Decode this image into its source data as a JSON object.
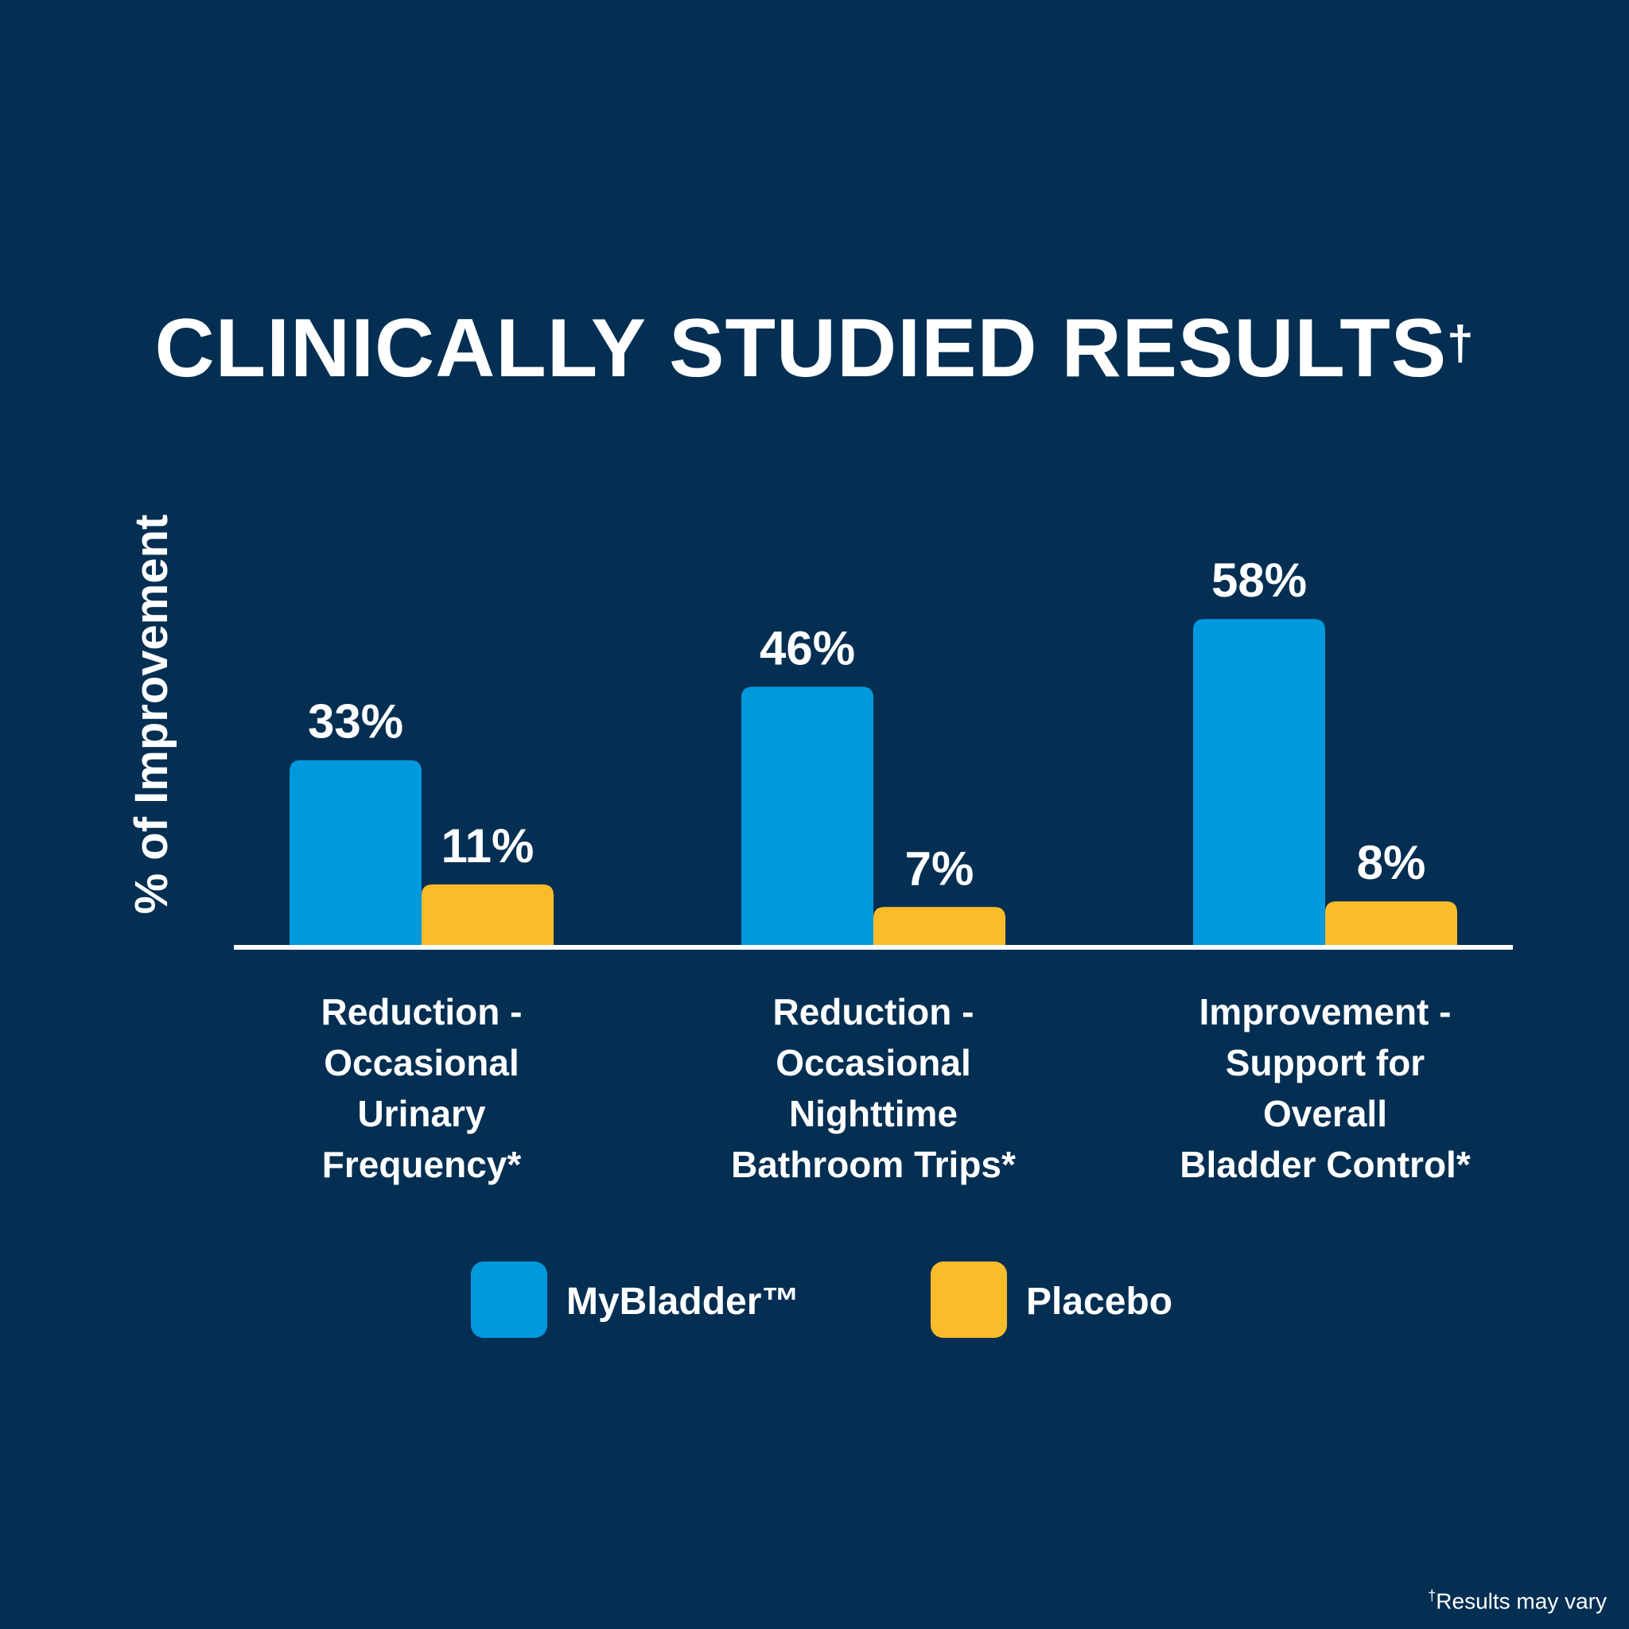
{
  "header": {
    "title": "CLINICALLY STUDIED RESULTS",
    "title_mark": "†"
  },
  "footer": {
    "note_mark": "†",
    "note": "Results may vary"
  },
  "colors": {
    "background": "#042f53",
    "mybladder": "#0099dd",
    "placebo": "#fbbc2a",
    "text": "#ffffff"
  },
  "chart_data": {
    "type": "bar",
    "title": "CLINICALLY STUDIED RESULTS†",
    "xlabel": "",
    "ylabel": "% of Improvement",
    "ylim": [
      0,
      100
    ],
    "grid": false,
    "legend_position": "bottom",
    "categories": [
      [
        "Reduction -",
        "Occasional",
        "Urinary",
        "Frequency*"
      ],
      [
        "Reduction -",
        "Occasional",
        "Nighttime",
        "Bathroom Trips*"
      ],
      [
        "Improvement -",
        "Support for",
        "Overall",
        "Bladder Control*"
      ]
    ],
    "series": [
      {
        "name": "MyBladder™",
        "color": "#0099dd",
        "values": [
          33,
          46,
          58
        ],
        "labels": [
          "33%",
          "46%",
          "58%"
        ]
      },
      {
        "name": "Placebo",
        "color": "#fbbc2a",
        "values": [
          11,
          7,
          8
        ],
        "labels": [
          "11%",
          "7%",
          "8%"
        ]
      }
    ]
  }
}
